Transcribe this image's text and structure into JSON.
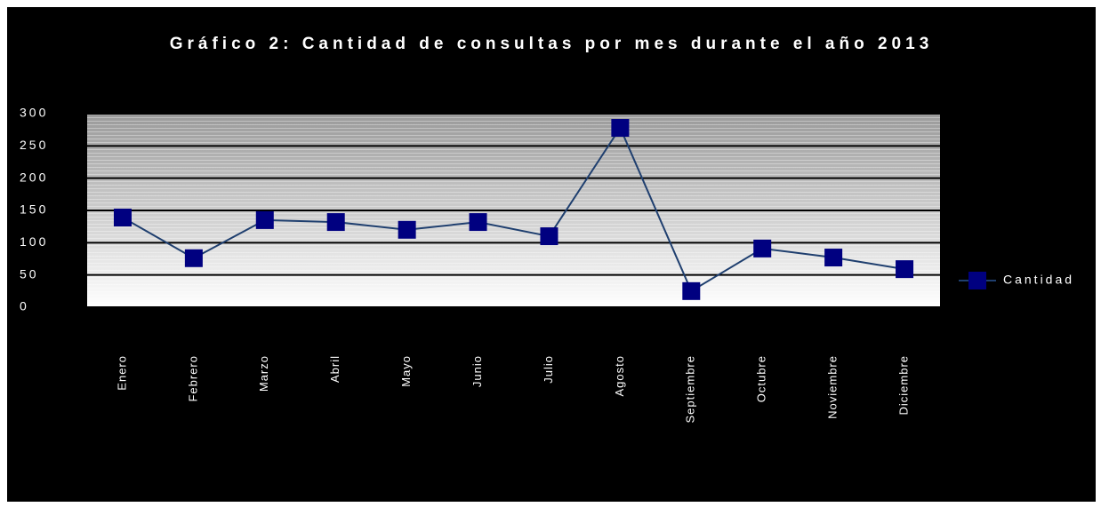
{
  "chart_data": {
    "type": "line",
    "title": "Gráfico 2: Cantidad de consultas por mes durante el año 2013",
    "categories": [
      "Enero",
      "Febrero",
      "Marzo",
      "Abril",
      "Mayo",
      "Junio",
      "Julio",
      "Agosto",
      "Septiembre",
      "Octubre",
      "Noviembre",
      "Diciembre"
    ],
    "series": [
      {
        "name": "Cantidad",
        "color": "#000080",
        "line_color": "#1f3f6f",
        "values": [
          139,
          76,
          135,
          132,
          120,
          132,
          110,
          278,
          25,
          91,
          77,
          59
        ]
      }
    ],
    "ylim": [
      0,
      300
    ],
    "yticks": [
      0,
      50,
      100,
      150,
      200,
      250,
      300
    ],
    "grid": true,
    "legend": "right"
  }
}
